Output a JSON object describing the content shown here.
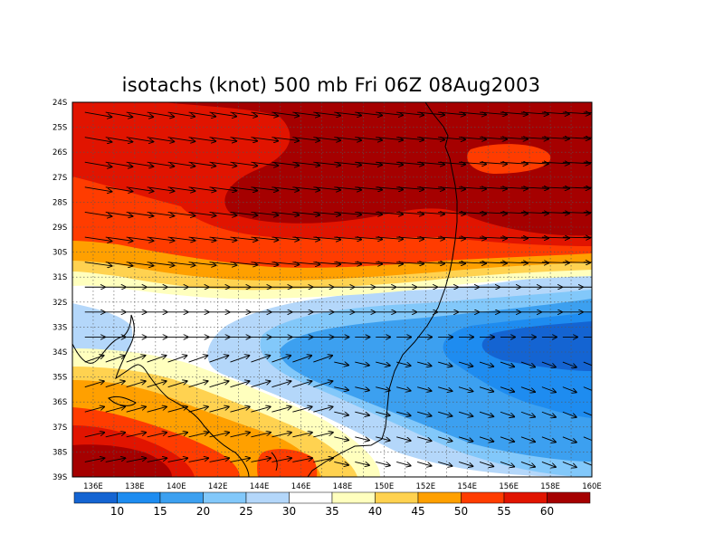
{
  "title": "isotachs (knot) 500 mb Fri 06Z 08Aug2003",
  "map": {
    "lon_range": [
      135,
      160
    ],
    "lat_range": [
      -39,
      -24
    ],
    "lat_labels": [
      "24S",
      "25S",
      "26S",
      "27S",
      "28S",
      "29S",
      "30S",
      "31S",
      "32S",
      "33S",
      "34S",
      "35S",
      "36S",
      "37S",
      "38S",
      "39S"
    ],
    "lon_labels": [
      "136E",
      "138E",
      "140E",
      "142E",
      "144E",
      "146E",
      "148E",
      "150E",
      "152E",
      "154E",
      "156E",
      "158E",
      "160E"
    ],
    "grid": "dotted, every 1 degree",
    "wind_vectors": "arrows showing 500 mb wind direction, mostly westerly"
  },
  "colorbar": {
    "levels": [
      "10",
      "15",
      "20",
      "25",
      "30",
      "35",
      "40",
      "45",
      "50",
      "55",
      "60"
    ],
    "colors": [
      "#1464d2",
      "#1e8cf0",
      "#3ca0f0",
      "#82c8fa",
      "#b4d7fa",
      "#ffffff",
      "#ffffbe",
      "#ffd250",
      "#ffa000",
      "#ff3c00",
      "#e11400",
      "#a50000"
    ]
  },
  "legend_units": "knot"
}
